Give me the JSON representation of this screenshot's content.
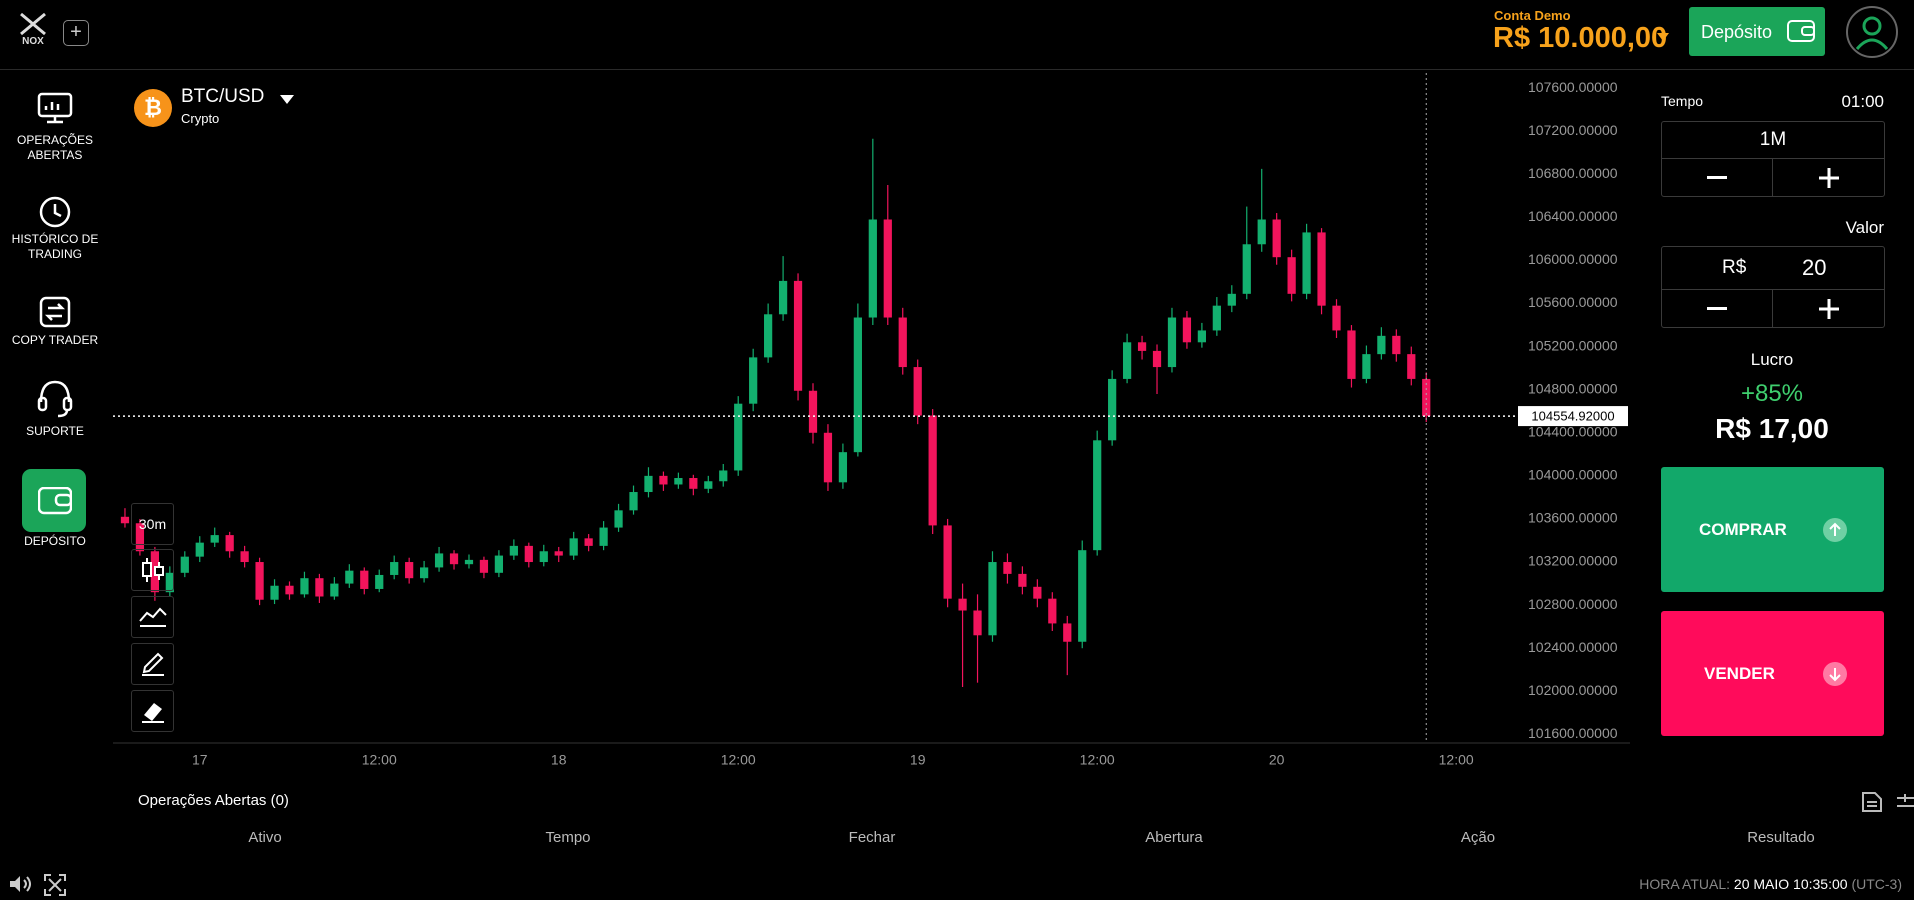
{
  "header": {
    "logo": "NOX",
    "account_label": "Conta Demo",
    "balance": "R$ 10.000,00",
    "deposit_button": "Depósito"
  },
  "sidebar": [
    "OPERAÇÕES ABERTAS",
    "HISTÓRICO DE TRADING",
    "COPY TRADER",
    "SUPORTE",
    "DEPÓSITO"
  ],
  "asset": {
    "name": "BTC/USD",
    "category": "Crypto"
  },
  "toolbar": {
    "interval": "30m"
  },
  "chart_data": {
    "type": "candlestick",
    "up_color": "#13b06f",
    "down_color": "#f2145c",
    "x": [
      -5,
      -4,
      -3,
      -2,
      -1,
      0,
      1,
      2,
      3,
      4,
      5,
      6,
      7,
      8,
      9,
      10,
      11,
      12,
      13,
      14,
      15,
      16,
      17,
      18,
      19,
      20,
      21,
      22,
      23,
      24,
      25,
      26,
      27,
      28,
      29,
      30,
      31,
      32,
      33,
      34,
      35,
      36,
      37,
      38,
      39,
      40,
      41,
      42,
      43,
      44,
      45,
      46,
      47,
      48,
      49,
      50,
      51,
      52,
      53,
      54,
      55,
      56,
      57,
      58,
      59,
      60,
      61,
      62,
      63,
      64,
      65,
      66,
      67,
      68,
      69,
      70,
      71,
      72,
      73,
      74,
      75,
      76,
      77,
      78,
      79,
      80,
      81,
      82
    ],
    "ohlc": [
      [
        103620,
        103700,
        103520,
        103560
      ],
      [
        103560,
        103600,
        103260,
        103300
      ],
      [
        103300,
        103340,
        102840,
        102920
      ],
      [
        102920,
        103160,
        102880,
        103100
      ],
      [
        103100,
        103300,
        103060,
        103250
      ],
      [
        103250,
        103440,
        103200,
        103380
      ],
      [
        103380,
        103520,
        103340,
        103450
      ],
      [
        103450,
        103480,
        103240,
        103300
      ],
      [
        103300,
        103350,
        103150,
        103200
      ],
      [
        103200,
        103240,
        102800,
        102850
      ],
      [
        102850,
        103040,
        102810,
        102980
      ],
      [
        102980,
        103020,
        102850,
        102900
      ],
      [
        102900,
        103110,
        102870,
        103050
      ],
      [
        103050,
        103090,
        102820,
        102880
      ],
      [
        102880,
        103060,
        102850,
        103000
      ],
      [
        103000,
        103180,
        102960,
        103120
      ],
      [
        103120,
        103150,
        102900,
        102950
      ],
      [
        102950,
        103130,
        102920,
        103080
      ],
      [
        103080,
        103260,
        103040,
        103200
      ],
      [
        103200,
        103240,
        103000,
        103050
      ],
      [
        103050,
        103210,
        103010,
        103150
      ],
      [
        103150,
        103340,
        103110,
        103280
      ],
      [
        103280,
        103310,
        103130,
        103180
      ],
      [
        103180,
        103270,
        103140,
        103220
      ],
      [
        103220,
        103250,
        103050,
        103100
      ],
      [
        103100,
        103310,
        103060,
        103260
      ],
      [
        103260,
        103410,
        103220,
        103350
      ],
      [
        103350,
        103380,
        103150,
        103200
      ],
      [
        103200,
        103360,
        103160,
        103300
      ],
      [
        103300,
        103340,
        103200,
        103260
      ],
      [
        103260,
        103480,
        103220,
        103420
      ],
      [
        103420,
        103460,
        103300,
        103350
      ],
      [
        103350,
        103580,
        103310,
        103520
      ],
      [
        103520,
        103740,
        103480,
        103680
      ],
      [
        103680,
        103910,
        103640,
        103850
      ],
      [
        103850,
        104080,
        103800,
        104000
      ],
      [
        104000,
        104040,
        103860,
        103920
      ],
      [
        103920,
        104030,
        103880,
        103980
      ],
      [
        103980,
        104010,
        103820,
        103880
      ],
      [
        103880,
        104000,
        103840,
        103950
      ],
      [
        103950,
        104110,
        103900,
        104050
      ],
      [
        104050,
        104740,
        104000,
        104670
      ],
      [
        104670,
        105180,
        104600,
        105100
      ],
      [
        105100,
        105600,
        105050,
        105500
      ],
      [
        105500,
        106040,
        105440,
        105810
      ],
      [
        105810,
        105880,
        104700,
        104790
      ],
      [
        104790,
        104860,
        104300,
        104400
      ],
      [
        104400,
        104480,
        103860,
        103940
      ],
      [
        103940,
        104300,
        103880,
        104220
      ],
      [
        104220,
        105600,
        104180,
        105470
      ],
      [
        105470,
        107130,
        105400,
        106380
      ],
      [
        106380,
        106700,
        105400,
        105470
      ],
      [
        105470,
        105560,
        104940,
        105010
      ],
      [
        105010,
        105080,
        104480,
        104560
      ],
      [
        104560,
        104620,
        103460,
        103540
      ],
      [
        103540,
        103600,
        102780,
        102860
      ],
      [
        102860,
        103000,
        102040,
        102750
      ],
      [
        102750,
        102900,
        102080,
        102520
      ],
      [
        102520,
        103300,
        102460,
        103200
      ],
      [
        103200,
        103280,
        103000,
        103090
      ],
      [
        103090,
        103160,
        102900,
        102970
      ],
      [
        102970,
        103040,
        102780,
        102860
      ],
      [
        102860,
        102920,
        102560,
        102630
      ],
      [
        102630,
        102700,
        102150,
        102460
      ],
      [
        102460,
        103400,
        102400,
        103310
      ],
      [
        103310,
        104420,
        103260,
        104330
      ],
      [
        104330,
        104980,
        104280,
        104900
      ],
      [
        104900,
        105320,
        104860,
        105240
      ],
      [
        105240,
        105300,
        105080,
        105160
      ],
      [
        105160,
        105220,
        104760,
        105010
      ],
      [
        105010,
        105560,
        104960,
        105470
      ],
      [
        105470,
        105530,
        105180,
        105240
      ],
      [
        105240,
        105420,
        105190,
        105350
      ],
      [
        105350,
        105660,
        105300,
        105580
      ],
      [
        105580,
        105770,
        105520,
        105690
      ],
      [
        105690,
        106500,
        105640,
        106150
      ],
      [
        106150,
        106850,
        106080,
        106380
      ],
      [
        106380,
        106440,
        105960,
        106030
      ],
      [
        106030,
        106100,
        105620,
        105690
      ],
      [
        105690,
        106340,
        105640,
        106260
      ],
      [
        106260,
        106300,
        105500,
        105580
      ],
      [
        105580,
        105640,
        105280,
        105350
      ],
      [
        105350,
        105400,
        104820,
        104900
      ],
      [
        104900,
        105210,
        104860,
        105130
      ],
      [
        105130,
        105380,
        105080,
        105300
      ],
      [
        105300,
        105360,
        105060,
        105130
      ],
      [
        105130,
        105200,
        104840,
        104900
      ],
      [
        104900,
        104960,
        104500,
        104554.92
      ]
    ],
    "xlim": [
      -5.8,
      87.8
    ],
    "xticks": [
      {
        "value": 0,
        "label": "17"
      },
      {
        "value": 12,
        "label": "12:00"
      },
      {
        "value": 24,
        "label": "18"
      },
      {
        "value": 36,
        "label": "12:00"
      },
      {
        "value": 48,
        "label": "19"
      },
      {
        "value": 60,
        "label": "12:00"
      },
      {
        "value": 72,
        "label": "20"
      },
      {
        "value": 84,
        "label": "12:00"
      }
    ],
    "ylim": [
      101520,
      107740
    ],
    "yticks": [
      {
        "value": 101600,
        "label": "101600.00000"
      },
      {
        "value": 102000,
        "label": "102000.00000"
      },
      {
        "value": 102400,
        "label": "102400.00000"
      },
      {
        "value": 102800,
        "label": "102800.00000"
      },
      {
        "value": 103200,
        "label": "103200.00000"
      },
      {
        "value": 103600,
        "label": "103600.00000"
      },
      {
        "value": 104000,
        "label": "104000.00000"
      },
      {
        "value": 104400,
        "label": "104400.00000"
      },
      {
        "value": 104800,
        "label": "104800.00000"
      },
      {
        "value": 105200,
        "label": "105200.00000"
      },
      {
        "value": 105600,
        "label": "105600.00000"
      },
      {
        "value": 106000,
        "label": "106000.00000"
      },
      {
        "value": 106400,
        "label": "106400.00000"
      },
      {
        "value": 106800,
        "label": "106800.00000"
      },
      {
        "value": 107200,
        "label": "107200.00000"
      },
      {
        "value": 107600,
        "label": "107600.00000"
      }
    ],
    "current_price": {
      "value": 104554.92,
      "label": "104554.92000"
    }
  },
  "trade_panel": {
    "time_label": "Tempo",
    "timer": "01:00",
    "duration": "1M",
    "amount_label": "Valor",
    "currency": "R$",
    "amount": 20,
    "profit_label": "Lucro",
    "profit_percent": "+85%",
    "profit_value": "R$ 17,00",
    "buy": "COMPRAR",
    "sell": "VENDER"
  },
  "operations": {
    "title": "Operações Abertas (0)",
    "columns": [
      "Ativo",
      "Tempo",
      "Fechar",
      "Abertura",
      "Ação",
      "Resultado"
    ]
  },
  "footer": {
    "time_label": "HORA ATUAL:",
    "time": "20 MAIO 10:35:00",
    "timezone": "(UTC-3)"
  }
}
